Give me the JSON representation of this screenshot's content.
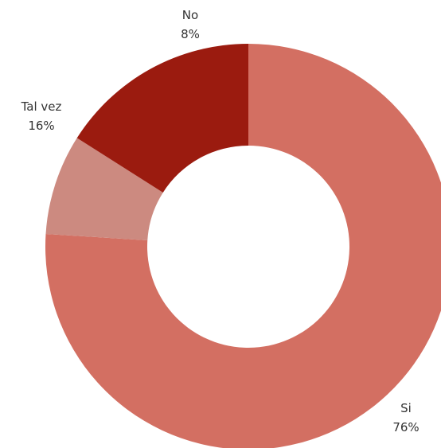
{
  "chart_data": {
    "type": "pie",
    "donut": true,
    "title": "",
    "legend": "none",
    "slices": [
      {
        "name": "Si",
        "value": 76,
        "label": "76%",
        "color": "#d36f62"
      },
      {
        "name": "No",
        "value": 8,
        "label": "8%",
        "color": "#cc8a80"
      },
      {
        "name": "Tal vez",
        "value": 16,
        "label": "16%",
        "color": "#9b1b0f"
      }
    ]
  }
}
